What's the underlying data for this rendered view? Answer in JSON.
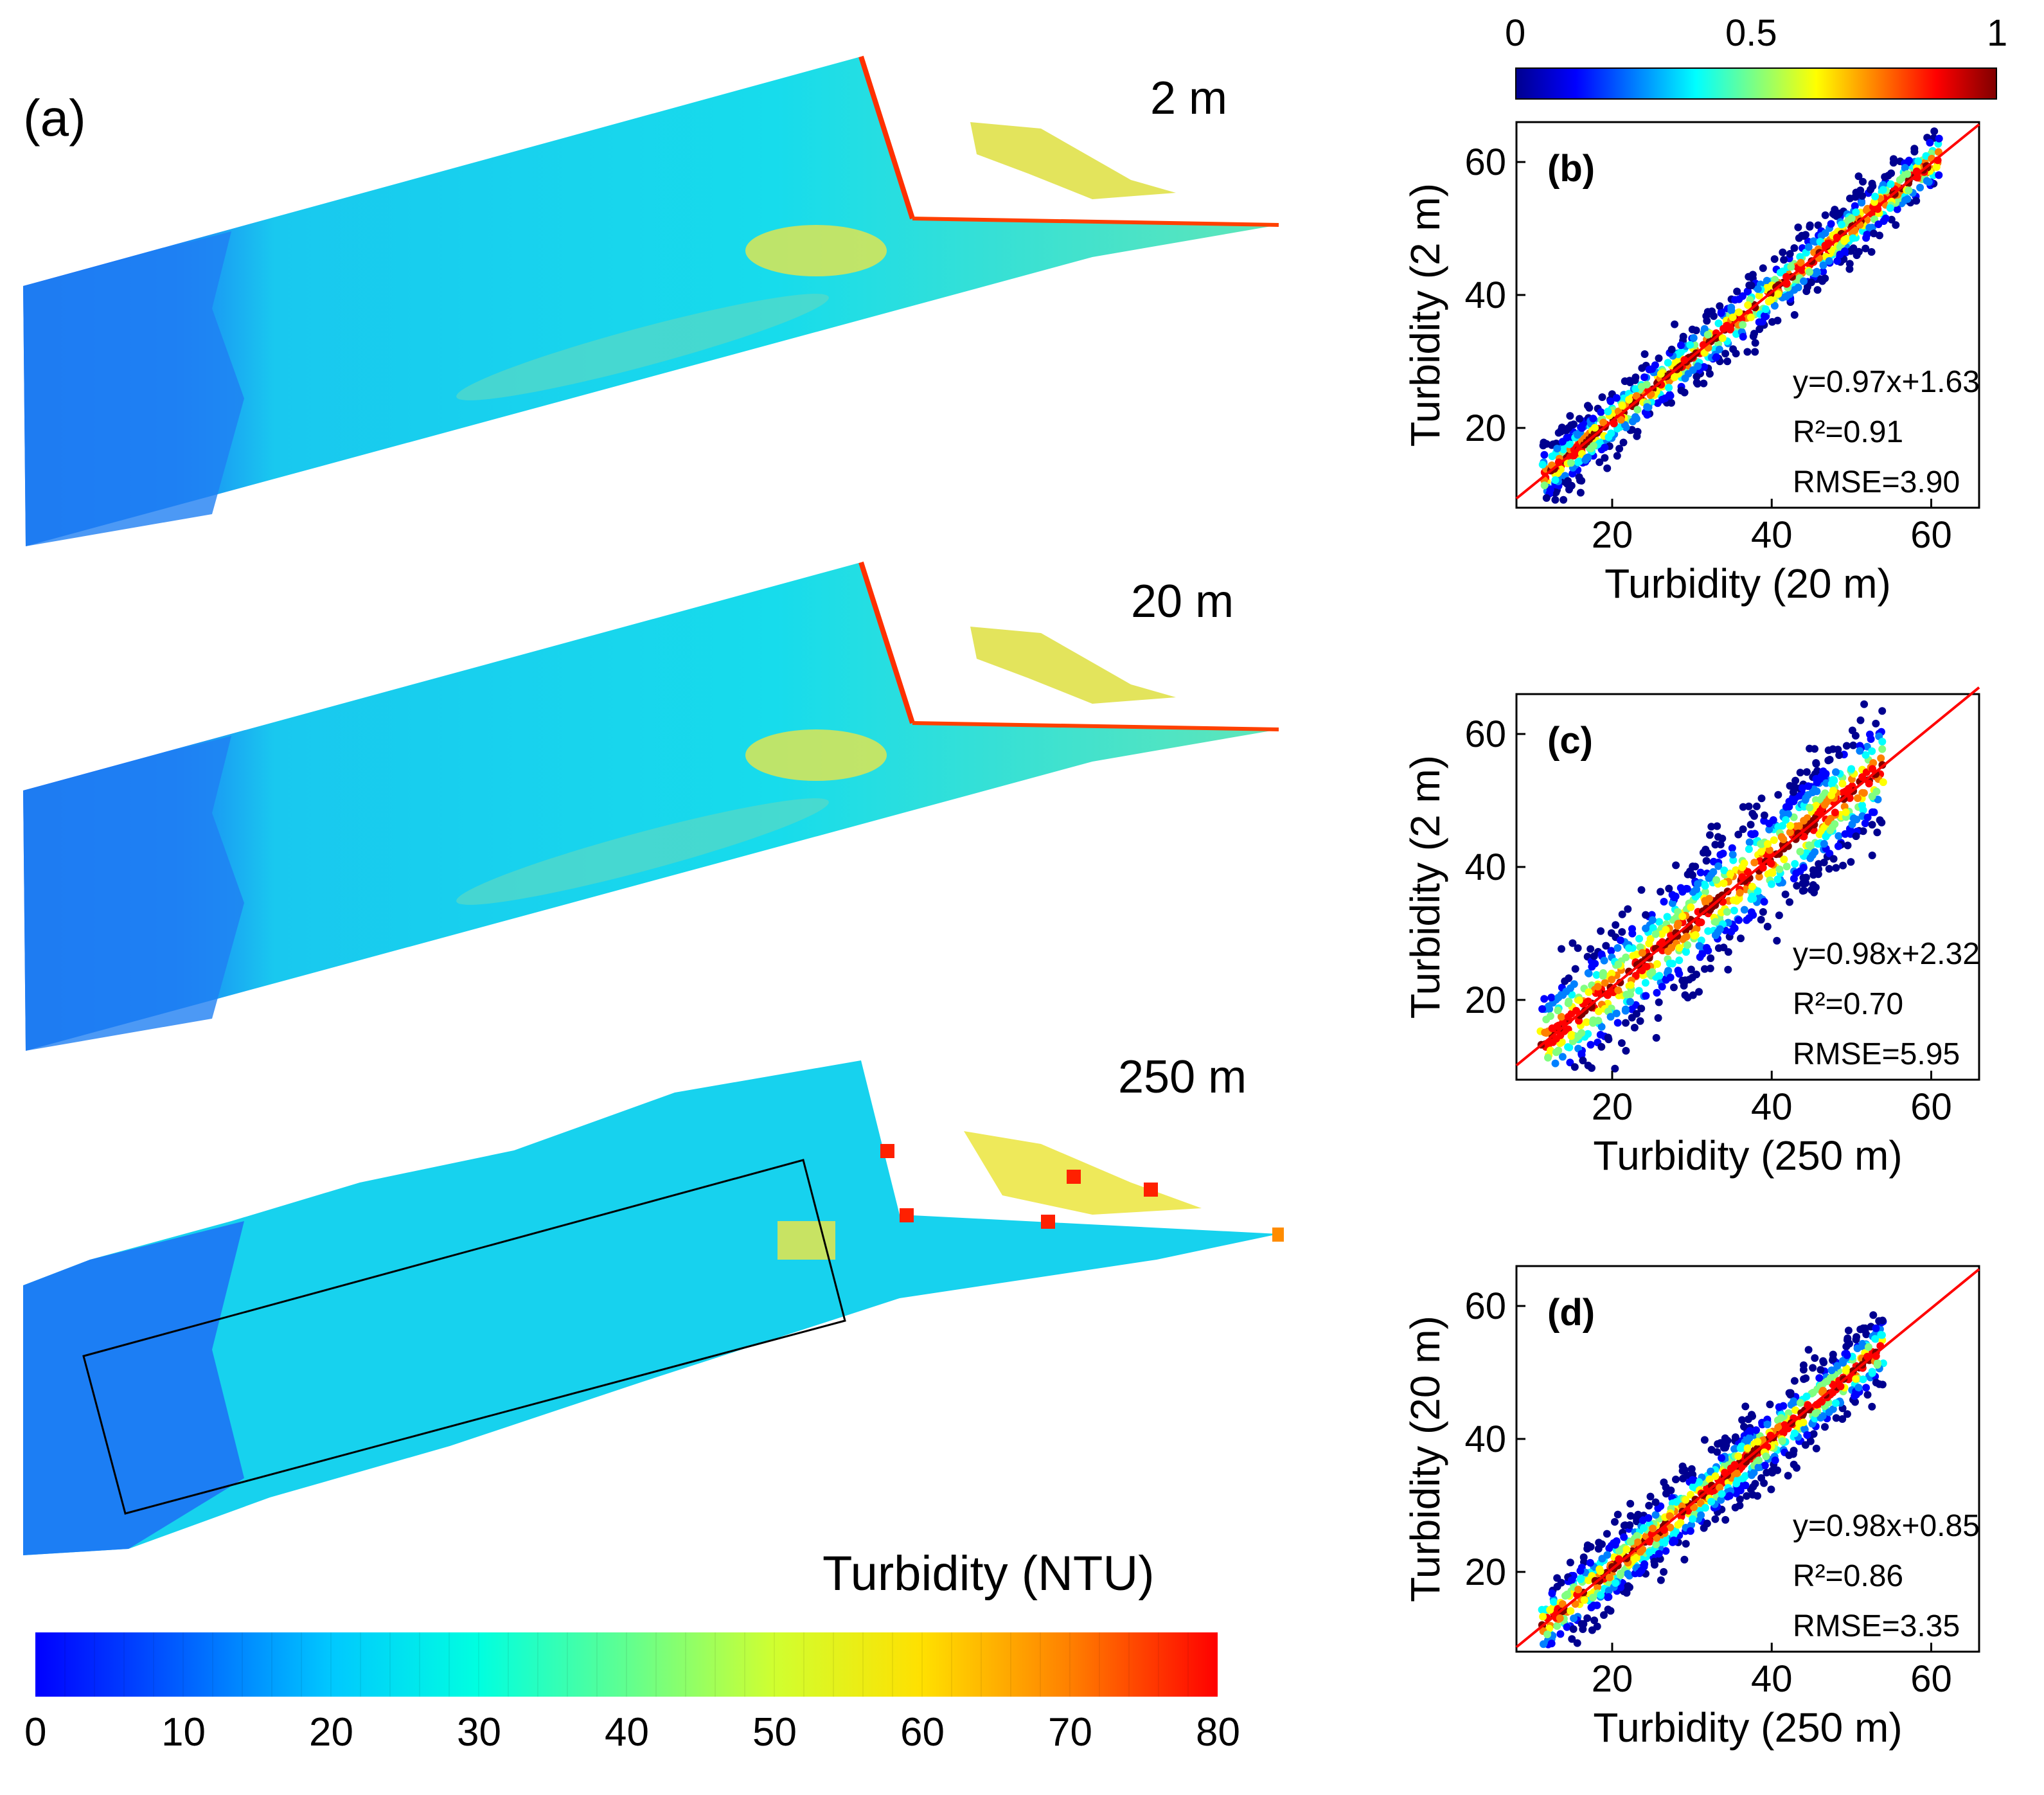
{
  "panel_a": {
    "label": "(a)",
    "maps": [
      {
        "resolution_label": "2 m"
      },
      {
        "resolution_label": "20 m"
      },
      {
        "resolution_label": "250 m"
      }
    ],
    "colorbar": {
      "title": "Turbidity (NTU)",
      "ticks": [
        "0",
        "10",
        "20",
        "30",
        "40",
        "50",
        "60",
        "70",
        "80"
      ],
      "colormap": [
        "#0000ff",
        "#0060ff",
        "#00c8ff",
        "#00ffe0",
        "#60ff90",
        "#d0ff30",
        "#ffe000",
        "#ff8000",
        "#ff0000"
      ]
    }
  },
  "density_colorbar": {
    "ticks": [
      "0",
      "0.5",
      "1"
    ],
    "colormap": [
      "#00008f",
      "#0000ff",
      "#0080ff",
      "#00ffff",
      "#80ff80",
      "#ffff00",
      "#ff8000",
      "#ff0000",
      "#800000"
    ]
  },
  "chart_data": [
    {
      "type": "scatter",
      "panel": "(b)",
      "xlabel": "Turbidity (20 m)",
      "ylabel": "Turbidity (2 m)",
      "xlim": [
        8,
        66
      ],
      "ylim": [
        8,
        66
      ],
      "xticks": [
        "20",
        "40",
        "60"
      ],
      "yticks": [
        "20",
        "40",
        "60"
      ],
      "fit": {
        "slope": 0.97,
        "intercept": 1.63
      },
      "stats": {
        "equation": "y=0.97x+1.63",
        "r2": "R²=0.91",
        "rmse": "RMSE=3.90"
      },
      "x_range": [
        11,
        61
      ],
      "spread": 5
    },
    {
      "type": "scatter",
      "panel": "(c)",
      "xlabel": "Turbidity (250 m)",
      "ylabel": "Turbidity (2 m)",
      "xlim": [
        8,
        66
      ],
      "ylim": [
        8,
        66
      ],
      "xticks": [
        "20",
        "40",
        "60"
      ],
      "yticks": [
        "20",
        "40",
        "60"
      ],
      "fit": {
        "slope": 0.98,
        "intercept": 2.32
      },
      "stats": {
        "equation": "y=0.98x+2.32",
        "r2": "R²=0.70",
        "rmse": "RMSE=5.95"
      },
      "x_range": [
        11,
        54
      ],
      "spread": 10
    },
    {
      "type": "scatter",
      "panel": "(d)",
      "xlabel": "Turbidity (250 m)",
      "ylabel": "Turbidity (20 m)",
      "xlim": [
        8,
        66
      ],
      "ylim": [
        8,
        66
      ],
      "xticks": [
        "20",
        "40",
        "60"
      ],
      "yticks": [
        "20",
        "40",
        "60"
      ],
      "fit": {
        "slope": 0.98,
        "intercept": 0.85
      },
      "stats": {
        "equation": "y=0.98x+0.85",
        "r2": "R²=0.86",
        "rmse": "RMSE=3.35"
      },
      "x_range": [
        11,
        54
      ],
      "spread": 6
    }
  ]
}
